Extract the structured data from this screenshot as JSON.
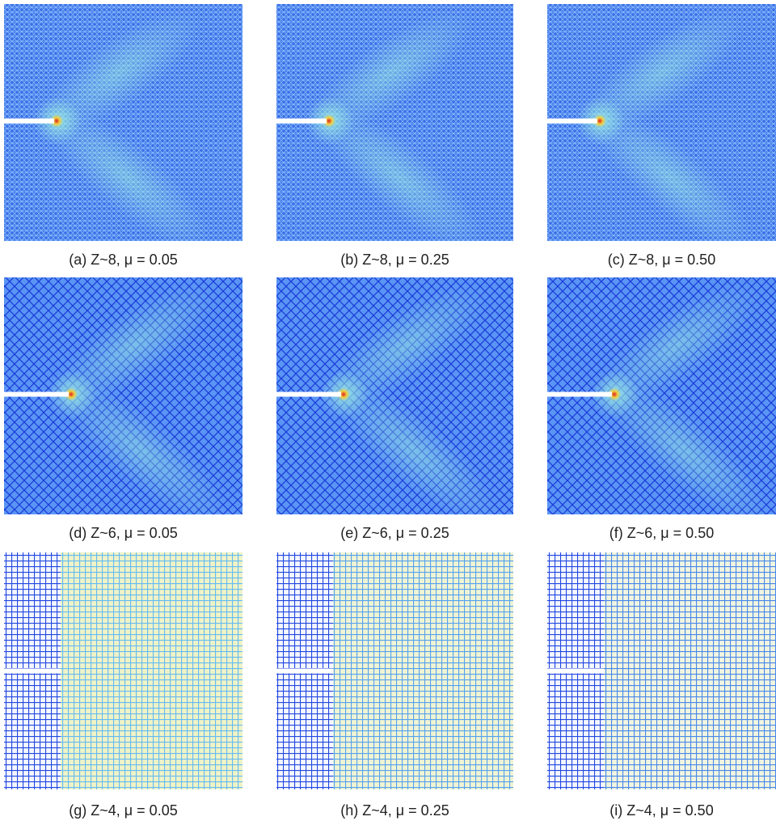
{
  "panels": [
    {
      "caption": "(a) Z~8,  μ = 0.05"
    },
    {
      "caption": "(b) Z~8,  μ = 0.25"
    },
    {
      "caption": "(c) Z~8,  μ = 0.50"
    },
    {
      "caption": "(d) Z~6,  μ = 0.05"
    },
    {
      "caption": "(e) Z~6,  μ = 0.25"
    },
    {
      "caption": "(f) Z~6,  μ = 0.50"
    },
    {
      "caption": "(g) Z~4,  μ = 0.05"
    },
    {
      "caption": "(h) Z~4,  μ = 0.25"
    },
    {
      "caption": "(i) Z~4,  μ = 0.50"
    }
  ]
}
